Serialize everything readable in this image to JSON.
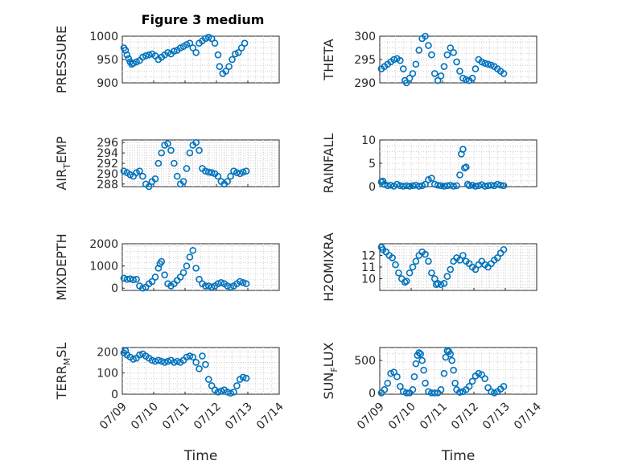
{
  "figure": {
    "title": "Figure 3 medium",
    "marker_color": "#0072bd"
  },
  "chart_data": [
    {
      "type": "scatter",
      "ylabel": "PRESSURE",
      "xlabel": "",
      "xticks": [
        "07/09",
        "07/10",
        "07/11",
        "07/12",
        "07/13",
        "07/14"
      ],
      "xlim": [
        0,
        5
      ],
      "ylim": [
        900,
        1000
      ],
      "yticks": [
        900,
        950,
        1000
      ],
      "grid": true,
      "x": [
        0.05,
        0.1,
        0.15,
        0.2,
        0.25,
        0.3,
        0.35,
        0.45,
        0.55,
        0.65,
        0.75,
        0.85,
        0.95,
        1.05,
        1.15,
        1.25,
        1.35,
        1.45,
        1.55,
        1.65,
        1.75,
        1.85,
        1.95,
        2.05,
        2.15,
        2.25,
        2.35,
        2.45,
        2.55,
        2.65,
        2.75,
        2.85,
        2.95,
        3.05,
        3.1,
        3.2,
        3.3,
        3.4,
        3.5,
        3.6,
        3.7,
        3.8,
        3.9
      ],
      "y": [
        975,
        970,
        960,
        952,
        945,
        940,
        942,
        945,
        948,
        955,
        958,
        960,
        962,
        958,
        950,
        955,
        960,
        965,
        962,
        968,
        970,
        975,
        978,
        982,
        985,
        975,
        965,
        985,
        990,
        995,
        998,
        995,
        985,
        960,
        935,
        920,
        925,
        935,
        950,
        962,
        965,
        975,
        985
      ]
    },
    {
      "type": "scatter",
      "ylabel": "THETA",
      "xlabel": "",
      "xticks": [
        "07/09",
        "07/10",
        "07/11",
        "07/12",
        "07/13",
        "07/14"
      ],
      "xlim": [
        0,
        5
      ],
      "ylim": [
        290,
        300
      ],
      "yticks": [
        290,
        295,
        300
      ],
      "grid": true,
      "x": [
        0.05,
        0.15,
        0.25,
        0.35,
        0.45,
        0.55,
        0.65,
        0.75,
        0.8,
        0.85,
        0.95,
        1.05,
        1.15,
        1.25,
        1.35,
        1.45,
        1.55,
        1.65,
        1.75,
        1.85,
        1.95,
        2.05,
        2.15,
        2.25,
        2.35,
        2.45,
        2.55,
        2.65,
        2.75,
        2.85,
        2.95,
        3.05,
        3.15,
        3.25,
        3.35,
        3.45,
        3.55,
        3.65,
        3.75,
        3.85,
        3.95
      ],
      "y": [
        293,
        293.5,
        294,
        294.5,
        295,
        295.2,
        294.8,
        293,
        290.5,
        290,
        291,
        292,
        294,
        297,
        299.5,
        300,
        298,
        296,
        292,
        290.5,
        291.5,
        293.5,
        296,
        297.5,
        296.5,
        294.5,
        292.5,
        291,
        290.7,
        290.5,
        291,
        293,
        295,
        294.5,
        294.2,
        294,
        293.8,
        293.5,
        293,
        292.5,
        292
      ]
    },
    {
      "type": "scatter",
      "ylabel": "AIR_TEMP",
      "xlabel": "",
      "xticks": [
        "07/09",
        "07/10",
        "07/11",
        "07/12",
        "07/13",
        "07/14"
      ],
      "xlim": [
        0,
        5
      ],
      "ylim": [
        287.5,
        296.5
      ],
      "yticks": [
        288,
        290,
        292,
        294,
        296
      ],
      "grid": true,
      "x": [
        0.05,
        0.15,
        0.25,
        0.35,
        0.45,
        0.55,
        0.65,
        0.75,
        0.85,
        0.95,
        1.05,
        1.15,
        1.25,
        1.35,
        1.45,
        1.55,
        1.65,
        1.75,
        1.85,
        1.95,
        2.05,
        2.15,
        2.25,
        2.35,
        2.45,
        2.55,
        2.65,
        2.75,
        2.85,
        2.95,
        3.05,
        3.15,
        3.25,
        3.35,
        3.45,
        3.55,
        3.65,
        3.75,
        3.85,
        3.95
      ],
      "y": [
        290.5,
        290.2,
        289.8,
        289.5,
        290.2,
        290.5,
        289.5,
        288,
        287.5,
        288.5,
        289,
        292,
        294,
        295.5,
        295.8,
        294.5,
        292,
        289.5,
        288,
        288.5,
        291,
        294,
        295.5,
        296,
        294.5,
        291,
        290.5,
        290.3,
        290.2,
        290,
        289.5,
        288.5,
        288,
        288.5,
        289.5,
        290.5,
        290.2,
        290,
        290.3,
        290.5
      ]
    },
    {
      "type": "scatter",
      "ylabel": "RAINFALL",
      "xlabel": "",
      "xticks": [
        "07/09",
        "07/10",
        "07/11",
        "07/12",
        "07/13",
        "07/14"
      ],
      "xlim": [
        0,
        5
      ],
      "ylim": [
        0,
        10
      ],
      "yticks": [
        0,
        5,
        10
      ],
      "grid": true,
      "x": [
        0.05,
        0.1,
        0.15,
        0.25,
        0.35,
        0.45,
        0.55,
        0.65,
        0.75,
        0.85,
        0.95,
        1.05,
        1.15,
        1.25,
        1.35,
        1.45,
        1.55,
        1.65,
        1.75,
        1.85,
        1.95,
        2.05,
        2.15,
        2.25,
        2.35,
        2.45,
        2.55,
        2.6,
        2.65,
        2.7,
        2.75,
        2.8,
        2.85,
        2.95,
        3.05,
        3.15,
        3.25,
        3.35,
        3.45,
        3.55,
        3.65,
        3.75,
        3.85,
        3.95
      ],
      "y": [
        1,
        1.2,
        0.5,
        0.2,
        0.3,
        0.1,
        0.5,
        0.2,
        0.1,
        0.2,
        0.1,
        0.2,
        0.3,
        0.1,
        0.2,
        0.5,
        1.5,
        1.8,
        0.5,
        0.3,
        0.2,
        0.1,
        0.2,
        0.3,
        0.1,
        0.2,
        2.5,
        7,
        8,
        4,
        4.2,
        0.5,
        0.2,
        0.3,
        0.1,
        0.2,
        0.4,
        0.1,
        0.2,
        0.3,
        0.2,
        0.5,
        0.3,
        0.2
      ]
    },
    {
      "type": "scatter",
      "ylabel": "MIXDEPTH",
      "xlabel": "",
      "xticks": [
        "07/09",
        "07/10",
        "07/11",
        "07/12",
        "07/13",
        "07/14"
      ],
      "xlim": [
        0,
        5
      ],
      "ylim": [
        -100,
        2000
      ],
      "yticks": [
        0,
        1000,
        2000
      ],
      "grid": true,
      "x": [
        0.05,
        0.15,
        0.25,
        0.35,
        0.45,
        0.55,
        0.65,
        0.75,
        0.85,
        0.95,
        1.05,
        1.15,
        1.2,
        1.25,
        1.35,
        1.45,
        1.55,
        1.65,
        1.75,
        1.85,
        1.95,
        2.05,
        2.15,
        2.25,
        2.35,
        2.45,
        2.55,
        2.65,
        2.75,
        2.85,
        2.95,
        3.05,
        3.15,
        3.25,
        3.35,
        3.45,
        3.55,
        3.65,
        3.75,
        3.85,
        3.95
      ],
      "y": [
        450,
        400,
        420,
        380,
        400,
        100,
        0,
        50,
        200,
        300,
        500,
        900,
        1100,
        1200,
        600,
        200,
        100,
        200,
        350,
        500,
        700,
        1000,
        1400,
        1700,
        900,
        400,
        200,
        100,
        100,
        50,
        100,
        200,
        250,
        200,
        100,
        50,
        100,
        200,
        300,
        250,
        200
      ]
    },
    {
      "type": "scatter",
      "ylabel": "H2OMIXRA",
      "xlabel": "",
      "xticks": [
        "07/09",
        "07/10",
        "07/11",
        "07/12",
        "07/13",
        "07/14"
      ],
      "xlim": [
        0,
        5
      ],
      "ylim": [
        9,
        13
      ],
      "yticks": [
        10,
        11,
        12
      ],
      "grid": true,
      "x": [
        0.05,
        0.1,
        0.2,
        0.3,
        0.4,
        0.5,
        0.6,
        0.7,
        0.8,
        0.85,
        0.95,
        1.05,
        1.15,
        1.25,
        1.35,
        1.45,
        1.55,
        1.65,
        1.75,
        1.8,
        1.85,
        1.95,
        2.05,
        2.15,
        2.25,
        2.35,
        2.45,
        2.55,
        2.65,
        2.75,
        2.85,
        2.95,
        3.05,
        3.15,
        3.25,
        3.35,
        3.45,
        3.55,
        3.65,
        3.75,
        3.85,
        3.95
      ],
      "y": [
        12.7,
        12.5,
        12.3,
        12.0,
        11.8,
        11.2,
        10.5,
        10.0,
        9.7,
        9.8,
        10.5,
        11.0,
        11.5,
        12.0,
        12.3,
        12.1,
        11.5,
        10.5,
        10.0,
        9.5,
        9.6,
        9.5,
        9.6,
        10.2,
        10.8,
        11.5,
        11.8,
        11.6,
        12.0,
        11.5,
        11.3,
        11.0,
        10.8,
        11.2,
        11.5,
        11.2,
        11.0,
        11.3,
        11.6,
        11.8,
        12.2,
        12.5
      ]
    },
    {
      "type": "scatter",
      "ylabel": "TERR_MSL",
      "xlabel": "Time",
      "xticks": [
        "07/09",
        "07/10",
        "07/11",
        "07/12",
        "07/13",
        "07/14"
      ],
      "xlim": [
        0,
        5
      ],
      "ylim": [
        0,
        220
      ],
      "yticks": [
        0,
        100,
        200
      ],
      "grid": true,
      "x": [
        0.05,
        0.1,
        0.15,
        0.25,
        0.35,
        0.45,
        0.55,
        0.65,
        0.75,
        0.85,
        0.95,
        1.05,
        1.15,
        1.25,
        1.35,
        1.45,
        1.55,
        1.65,
        1.75,
        1.85,
        1.95,
        2.05,
        2.15,
        2.25,
        2.35,
        2.45,
        2.55,
        2.65,
        2.75,
        2.85,
        2.95,
        3.05,
        3.15,
        3.25,
        3.35,
        3.45,
        3.55,
        3.65,
        3.75,
        3.85,
        3.95
      ],
      "y": [
        195,
        205,
        185,
        175,
        165,
        170,
        185,
        190,
        180,
        170,
        160,
        155,
        160,
        155,
        150,
        155,
        160,
        150,
        155,
        150,
        160,
        175,
        180,
        175,
        150,
        120,
        180,
        140,
        70,
        40,
        20,
        10,
        15,
        20,
        10,
        5,
        10,
        40,
        70,
        80,
        75
      ]
    },
    {
      "type": "scatter",
      "ylabel": "SUN_FLUX",
      "xlabel": "Time",
      "xticks": [
        "07/09",
        "07/10",
        "07/11",
        "07/12",
        "07/13",
        "07/14"
      ],
      "xlim": [
        0,
        5
      ],
      "ylim": [
        -20,
        700
      ],
      "yticks": [
        0,
        500
      ],
      "grid": true,
      "x": [
        0.05,
        0.15,
        0.25,
        0.35,
        0.45,
        0.55,
        0.65,
        0.75,
        0.85,
        0.95,
        1.05,
        1.1,
        1.15,
        1.2,
        1.25,
        1.3,
        1.35,
        1.4,
        1.45,
        1.55,
        1.65,
        1.75,
        1.85,
        1.95,
        2.05,
        2.1,
        2.15,
        2.2,
        2.25,
        2.3,
        2.35,
        2.4,
        2.45,
        2.55,
        2.65,
        2.75,
        2.85,
        2.95,
        3.05,
        3.15,
        3.25,
        3.35,
        3.45,
        3.55,
        3.65,
        3.75,
        3.85,
        3.95
      ],
      "y": [
        0,
        50,
        150,
        300,
        320,
        250,
        100,
        20,
        0,
        0,
        50,
        250,
        450,
        580,
        620,
        600,
        500,
        350,
        150,
        20,
        0,
        0,
        0,
        50,
        300,
        550,
        650,
        640,
        600,
        500,
        350,
        150,
        50,
        10,
        20,
        50,
        100,
        180,
        260,
        300,
        280,
        220,
        80,
        20,
        0,
        20,
        60,
        100
      ]
    }
  ]
}
